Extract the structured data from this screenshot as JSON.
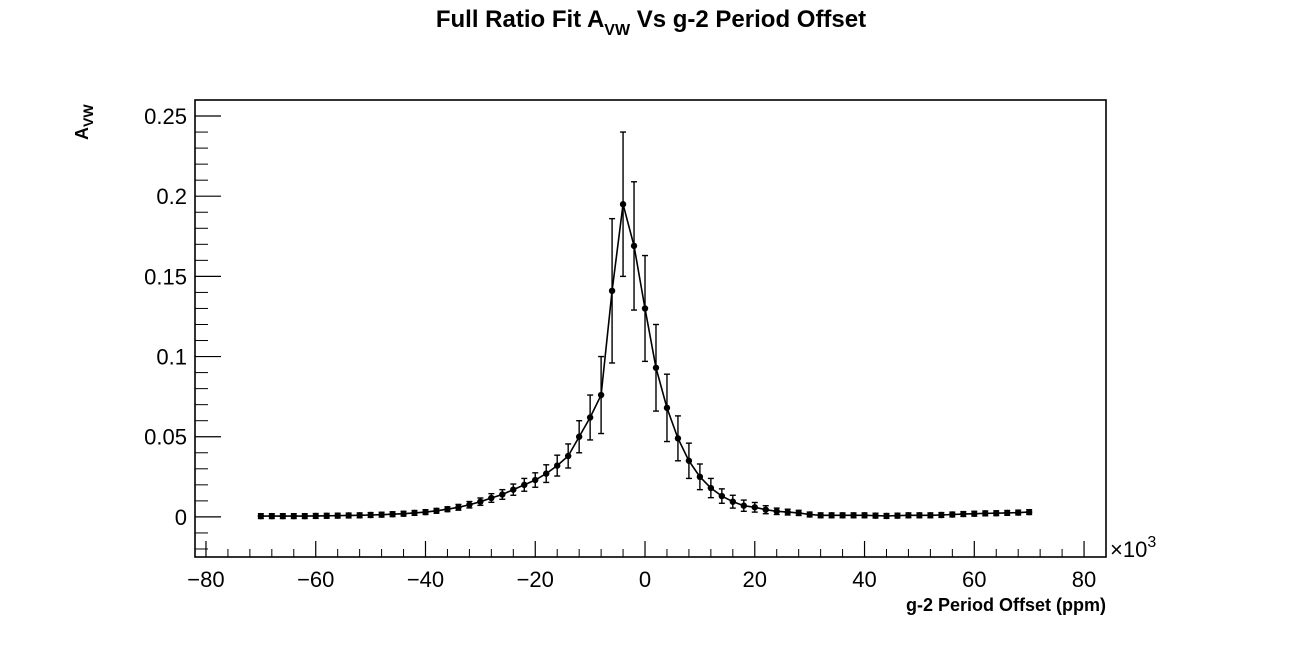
{
  "chart_data": {
    "type": "scatter",
    "title": {
      "main": "Full Ratio Fit A",
      "sub": "VW",
      "rest": " Vs g-2 Period Offset"
    },
    "xlabel": "g-2 Period Offset (ppm)",
    "ylabel": {
      "main": "A",
      "sub": "VW"
    },
    "x_multiplier": {
      "prefix": "×10",
      "exponent": "3"
    },
    "xlim": [
      -82,
      84
    ],
    "ylim": [
      -0.025,
      0.26
    ],
    "x_ticks": [
      -80,
      -60,
      -40,
      -20,
      0,
      20,
      40,
      60,
      80
    ],
    "x_tick_labels": [
      "−80",
      "−60",
      "−40",
      "−20",
      "0",
      "20",
      "40",
      "60",
      "80"
    ],
    "y_ticks": [
      0,
      0.05,
      0.1,
      0.15,
      0.2,
      0.25
    ],
    "y_tick_labels": [
      "0",
      "0.05",
      "0.1",
      "0.15",
      "0.2",
      "0.25"
    ],
    "grid": false,
    "legend": "none",
    "series": [
      {
        "marker": "circle",
        "line": true,
        "x": [
          -70,
          -68,
          -66,
          -64,
          -62,
          -60,
          -58,
          -56,
          -54,
          -52,
          -50,
          -48,
          -46,
          -44,
          -42,
          -40,
          -38,
          -36,
          -34,
          -32,
          -30,
          -28,
          -26,
          -24,
          -22,
          -20,
          -18,
          -16,
          -14,
          -12,
          -10,
          -8,
          -6,
          -4,
          -2,
          0,
          2,
          4,
          6,
          8,
          10,
          12,
          14,
          16,
          18,
          20,
          22,
          24,
          26,
          28,
          30,
          32,
          34,
          36,
          38,
          40,
          42,
          44,
          46,
          48,
          50,
          52,
          54,
          56,
          58,
          60,
          62,
          64,
          66,
          68,
          70
        ],
        "y": [
          0.0005,
          0.0005,
          0.0005,
          0.0005,
          0.0005,
          0.0006,
          0.0007,
          0.0008,
          0.0009,
          0.001,
          0.0012,
          0.0014,
          0.0017,
          0.002,
          0.0025,
          0.003,
          0.0038,
          0.0048,
          0.006,
          0.0076,
          0.0095,
          0.0118,
          0.014,
          0.017,
          0.02,
          0.023,
          0.027,
          0.032,
          0.038,
          0.05,
          0.062,
          0.076,
          0.141,
          0.195,
          0.169,
          0.13,
          0.093,
          0.068,
          0.049,
          0.035,
          0.025,
          0.018,
          0.013,
          0.0095,
          0.007,
          0.006,
          0.0045,
          0.0035,
          0.003,
          0.0025,
          0.0015,
          0.001,
          0.001,
          0.001,
          0.001,
          0.001,
          0.0008,
          0.0006,
          0.0008,
          0.001,
          0.001,
          0.001,
          0.0012,
          0.0015,
          0.0018,
          0.002,
          0.0022,
          0.0023,
          0.0025,
          0.0027,
          0.003
        ],
        "yerr": [
          0.0015,
          0.0015,
          0.0015,
          0.0015,
          0.0015,
          0.0015,
          0.0015,
          0.0015,
          0.0015,
          0.0015,
          0.0015,
          0.0015,
          0.0015,
          0.0015,
          0.0015,
          0.0015,
          0.0015,
          0.0015,
          0.0018,
          0.002,
          0.0023,
          0.0027,
          0.003,
          0.0035,
          0.004,
          0.0045,
          0.0055,
          0.0065,
          0.0075,
          0.01,
          0.014,
          0.024,
          0.045,
          0.045,
          0.04,
          0.033,
          0.027,
          0.021,
          0.014,
          0.011,
          0.008,
          0.006,
          0.0045,
          0.004,
          0.0035,
          0.003,
          0.0025,
          0.002,
          0.0018,
          0.0016,
          0.0015,
          0.0015,
          0.0015,
          0.0015,
          0.0015,
          0.0015,
          0.0015,
          0.0015,
          0.0015,
          0.0015,
          0.0015,
          0.0015,
          0.0015,
          0.0015,
          0.0015,
          0.0015,
          0.0015,
          0.0015,
          0.0015,
          0.0015,
          0.0015
        ]
      }
    ]
  }
}
